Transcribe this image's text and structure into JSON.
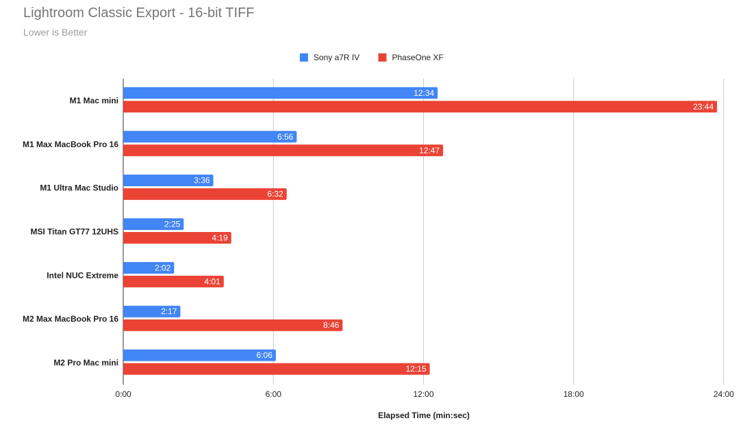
{
  "chart_data": {
    "type": "bar",
    "orientation": "horizontal",
    "title": "Lightroom Classic Export - 16-bit TIFF",
    "subtitle": "Lower is Better",
    "xlabel": "Elapsed Time (min:sec)",
    "ylabel": "",
    "categories": [
      "M1 Mac mini",
      "M1 Max MacBook Pro 16",
      "M1 Ultra Mac Studio",
      "MSI Titan GT77 12UHS",
      "Intel NUC Extreme",
      "M2 Max MacBook Pro 16",
      "M2 Pro Mac mini"
    ],
    "series": [
      {
        "name": "Sony a7R IV",
        "color": "#4285f4",
        "values_seconds": [
          754,
          416,
          216,
          145,
          122,
          137,
          366
        ],
        "labels": [
          "12:34",
          "6:56",
          "3:36",
          "2:25",
          "2:02",
          "2:17",
          "6:06"
        ]
      },
      {
        "name": "PhaseOne XF",
        "color": "#ea4335",
        "values_seconds": [
          1424,
          767,
          392,
          259,
          241,
          526,
          735
        ],
        "labels": [
          "23:44",
          "12:47",
          "6:32",
          "4:19",
          "4:01",
          "8:46",
          "12:15"
        ]
      }
    ],
    "xlim_seconds": [
      0,
      1440
    ],
    "xticks_seconds": [
      0,
      360,
      720,
      1080,
      1440
    ],
    "xtick_labels": [
      "0:00",
      "6:00",
      "12:00",
      "18:00",
      "24:00"
    ],
    "grid": true,
    "legend_position": "top-center"
  }
}
